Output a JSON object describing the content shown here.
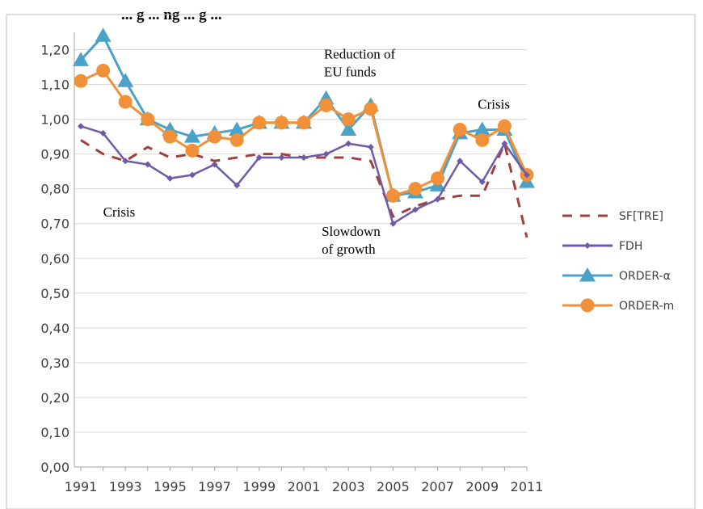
{
  "chart_data": {
    "type": "line",
    "title": "... g ... ng ... g ...",
    "x": [
      1991,
      1992,
      1993,
      1994,
      1995,
      1996,
      1997,
      1998,
      1999,
      2000,
      2001,
      2002,
      2003,
      2004,
      2005,
      2006,
      2007,
      2008,
      2009,
      2010,
      2011
    ],
    "x_tick_labels": [
      "1991",
      "1993",
      "1995",
      "1997",
      "1999",
      "2001",
      "2003",
      "2005",
      "2007",
      "2009",
      "2011"
    ],
    "y_tick_labels": [
      "0,00",
      "0,10",
      "0,20",
      "0,30",
      "0,40",
      "0,50",
      "0,60",
      "0,70",
      "0,80",
      "0,90",
      "1,00",
      "1,10",
      "1,20"
    ],
    "ylim": [
      0,
      1.25
    ],
    "grid": "horizontal",
    "legend_position": "right",
    "series": [
      {
        "name": "SF[TRE]",
        "color": "#a0403c",
        "style": "dashed",
        "marker": "none",
        "values": [
          0.94,
          0.9,
          0.88,
          0.92,
          0.89,
          0.9,
          0.88,
          0.89,
          0.9,
          0.9,
          0.89,
          0.89,
          0.89,
          0.88,
          0.72,
          0.75,
          0.77,
          0.78,
          0.78,
          0.93,
          0.66
        ]
      },
      {
        "name": "FDH",
        "color": "#6f5aa7",
        "style": "solid",
        "marker": "diamond",
        "values": [
          0.98,
          0.96,
          0.88,
          0.87,
          0.83,
          0.84,
          0.87,
          0.81,
          0.89,
          0.89,
          0.89,
          0.9,
          0.93,
          0.92,
          0.7,
          0.74,
          0.77,
          0.88,
          0.82,
          0.93,
          0.84
        ]
      },
      {
        "name": "ORDER-α",
        "color": "#4aa3c6",
        "style": "solid",
        "marker": "triangle",
        "values": [
          1.17,
          1.24,
          1.11,
          1.0,
          0.97,
          0.95,
          0.96,
          0.97,
          0.99,
          0.99,
          0.99,
          1.06,
          0.97,
          1.04,
          0.78,
          0.79,
          0.81,
          0.96,
          0.97,
          0.97,
          0.82
        ]
      },
      {
        "name": "ORDER-m",
        "color": "#f0913a",
        "style": "solid",
        "marker": "circle",
        "values": [
          1.11,
          1.14,
          1.05,
          1.0,
          0.95,
          0.91,
          0.95,
          0.94,
          0.99,
          0.99,
          0.99,
          1.04,
          1.0,
          1.03,
          0.78,
          0.8,
          0.83,
          0.97,
          0.94,
          0.98,
          0.84
        ]
      }
    ],
    "annotations": [
      {
        "id": "crisis-left",
        "lines": [
          "Crisis"
        ],
        "x": 1992,
        "y": 0.72
      },
      {
        "id": "reduction",
        "lines": [
          "Reduction of",
          "EU funds"
        ],
        "x": 2001.9,
        "y": 1.175
      },
      {
        "id": "slowdown",
        "lines": [
          "Slowdown",
          "of growth"
        ],
        "x": 2001.8,
        "y": 0.665
      },
      {
        "id": "crisis-right",
        "lines": [
          "Crisis"
        ],
        "x": 2008.8,
        "y": 1.03
      }
    ]
  }
}
